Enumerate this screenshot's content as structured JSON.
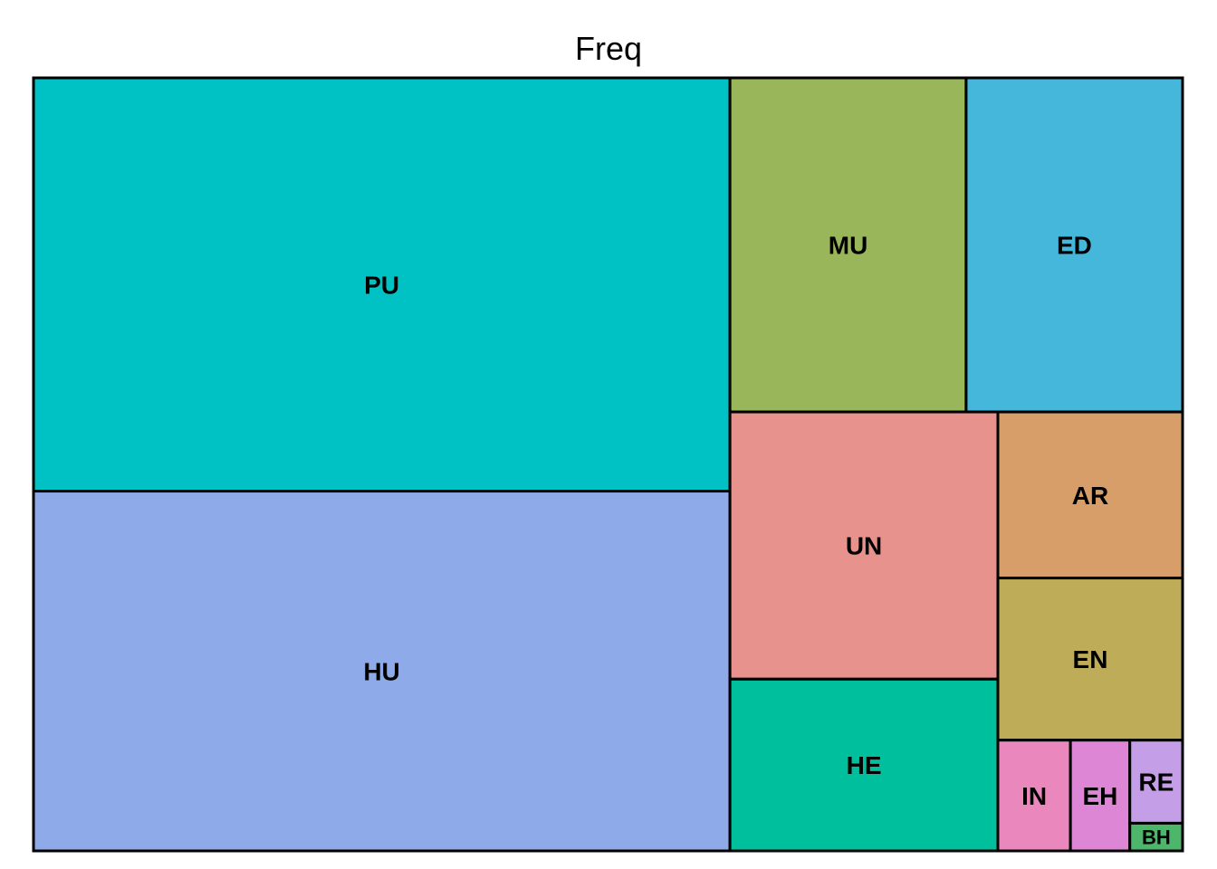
{
  "chart_data": {
    "type": "treemap",
    "title": "Freq",
    "tiles": [
      {
        "label": "PU",
        "value": 394,
        "color": "#00C1C3"
      },
      {
        "label": "HU",
        "value": 343,
        "color": "#8FAAE9"
      },
      {
        "label": "MU",
        "value": 108,
        "color": "#9AB65A"
      },
      {
        "label": "ED",
        "value": 99,
        "color": "#45B7DB"
      },
      {
        "label": "UN",
        "value": 98,
        "color": "#E8928D"
      },
      {
        "label": "HE",
        "value": 63,
        "color": "#00BF9D"
      },
      {
        "label": "AR",
        "value": 42,
        "color": "#D89E6A"
      },
      {
        "label": "EN",
        "value": 41,
        "color": "#BEAC59"
      },
      {
        "label": "IN",
        "value": 11,
        "color": "#EA88BE"
      },
      {
        "label": "EH",
        "value": 9,
        "color": "#DE86D6"
      },
      {
        "label": "RE",
        "value": 6,
        "color": "#C49EE6"
      },
      {
        "label": "BH",
        "value": 2,
        "color": "#4DB66B"
      }
    ]
  }
}
